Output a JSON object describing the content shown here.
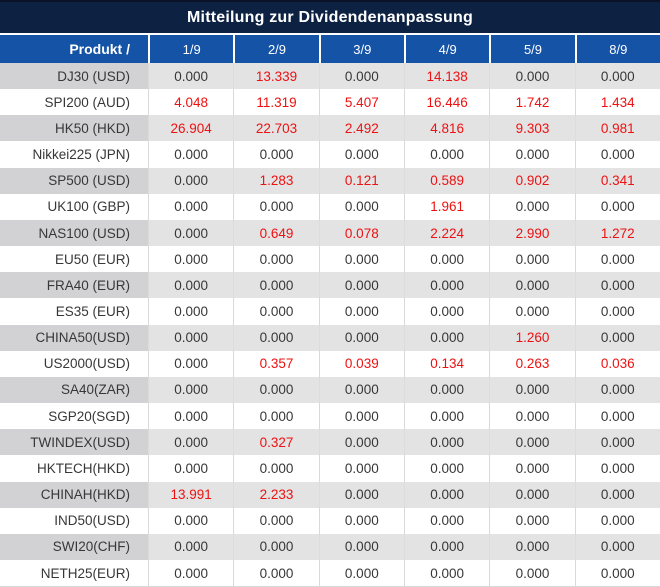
{
  "title": "Mitteilung zur Dividendenanpassung",
  "colors": {
    "title_background": "#0d2143",
    "header_background": "#1453a6",
    "stripe_row_background": "#e3e3e4",
    "stripe_label_background": "#d2d2d4",
    "grid_line": "#d9d9d9",
    "value_text": "#373737",
    "highlight_red": "#ee1111",
    "header_text": "#ffffff"
  },
  "columns": {
    "product_header": "Produkt /",
    "dates": [
      "1/9",
      "2/9",
      "3/9",
      "4/9",
      "5/9",
      "8/9"
    ]
  },
  "rows": [
    {
      "label": "DJ30 (USD)",
      "values": [
        "0.000",
        "13.339",
        "0.000",
        "14.138",
        "0.000",
        "0.000"
      ],
      "red": [
        false,
        true,
        false,
        true,
        false,
        false
      ]
    },
    {
      "label": "SPI200 (AUD)",
      "values": [
        "4.048",
        "11.319",
        "5.407",
        "16.446",
        "1.742",
        "1.434"
      ],
      "red": [
        true,
        true,
        true,
        true,
        true,
        true
      ]
    },
    {
      "label": "HK50 (HKD)",
      "values": [
        "26.904",
        "22.703",
        "2.492",
        "4.816",
        "9.303",
        "0.981"
      ],
      "red": [
        true,
        true,
        true,
        true,
        true,
        true
      ]
    },
    {
      "label": "Nikkei225 (JPN)",
      "values": [
        "0.000",
        "0.000",
        "0.000",
        "0.000",
        "0.000",
        "0.000"
      ],
      "red": [
        false,
        false,
        false,
        false,
        false,
        false
      ]
    },
    {
      "label": "SP500 (USD)",
      "values": [
        "0.000",
        "1.283",
        "0.121",
        "0.589",
        "0.902",
        "0.341"
      ],
      "red": [
        false,
        true,
        true,
        true,
        true,
        true
      ]
    },
    {
      "label": "UK100 (GBP)",
      "values": [
        "0.000",
        "0.000",
        "0.000",
        "1.961",
        "0.000",
        "0.000"
      ],
      "red": [
        false,
        false,
        false,
        true,
        false,
        false
      ]
    },
    {
      "label": "NAS100 (USD)",
      "values": [
        "0.000",
        "0.649",
        "0.078",
        "2.224",
        "2.990",
        "1.272"
      ],
      "red": [
        false,
        true,
        true,
        true,
        true,
        true
      ]
    },
    {
      "label": "EU50 (EUR)",
      "values": [
        "0.000",
        "0.000",
        "0.000",
        "0.000",
        "0.000",
        "0.000"
      ],
      "red": [
        false,
        false,
        false,
        false,
        false,
        false
      ]
    },
    {
      "label": "FRA40 (EUR)",
      "values": [
        "0.000",
        "0.000",
        "0.000",
        "0.000",
        "0.000",
        "0.000"
      ],
      "red": [
        false,
        false,
        false,
        false,
        false,
        false
      ]
    },
    {
      "label": "ES35 (EUR)",
      "values": [
        "0.000",
        "0.000",
        "0.000",
        "0.000",
        "0.000",
        "0.000"
      ],
      "red": [
        false,
        false,
        false,
        false,
        false,
        false
      ]
    },
    {
      "label": "CHINA50(USD)",
      "values": [
        "0.000",
        "0.000",
        "0.000",
        "0.000",
        "1.260",
        "0.000"
      ],
      "red": [
        false,
        false,
        false,
        false,
        true,
        false
      ]
    },
    {
      "label": "US2000(USD)",
      "values": [
        "0.000",
        "0.357",
        "0.039",
        "0.134",
        "0.263",
        "0.036"
      ],
      "red": [
        false,
        true,
        true,
        true,
        true,
        true
      ]
    },
    {
      "label": "SA40(ZAR)",
      "values": [
        "0.000",
        "0.000",
        "0.000",
        "0.000",
        "0.000",
        "0.000"
      ],
      "red": [
        false,
        false,
        false,
        false,
        false,
        false
      ]
    },
    {
      "label": "SGP20(SGD)",
      "values": [
        "0.000",
        "0.000",
        "0.000",
        "0.000",
        "0.000",
        "0.000"
      ],
      "red": [
        false,
        false,
        false,
        false,
        false,
        false
      ]
    },
    {
      "label": "TWINDEX(USD)",
      "values": [
        "0.000",
        "0.327",
        "0.000",
        "0.000",
        "0.000",
        "0.000"
      ],
      "red": [
        false,
        true,
        false,
        false,
        false,
        false
      ]
    },
    {
      "label": "HKTECH(HKD)",
      "values": [
        "0.000",
        "0.000",
        "0.000",
        "0.000",
        "0.000",
        "0.000"
      ],
      "red": [
        false,
        false,
        false,
        false,
        false,
        false
      ]
    },
    {
      "label": "CHINAH(HKD)",
      "values": [
        "13.991",
        "2.233",
        "0.000",
        "0.000",
        "0.000",
        "0.000"
      ],
      "red": [
        true,
        true,
        false,
        false,
        false,
        false
      ]
    },
    {
      "label": "IND50(USD)",
      "values": [
        "0.000",
        "0.000",
        "0.000",
        "0.000",
        "0.000",
        "0.000"
      ],
      "red": [
        false,
        false,
        false,
        false,
        false,
        false
      ]
    },
    {
      "label": "SWI20(CHF)",
      "values": [
        "0.000",
        "0.000",
        "0.000",
        "0.000",
        "0.000",
        "0.000"
      ],
      "red": [
        false,
        false,
        false,
        false,
        false,
        false
      ]
    },
    {
      "label": "NETH25(EUR)",
      "values": [
        "0.000",
        "0.000",
        "0.000",
        "0.000",
        "0.000",
        "0.000"
      ],
      "red": [
        false,
        false,
        false,
        false,
        false,
        false
      ]
    }
  ]
}
